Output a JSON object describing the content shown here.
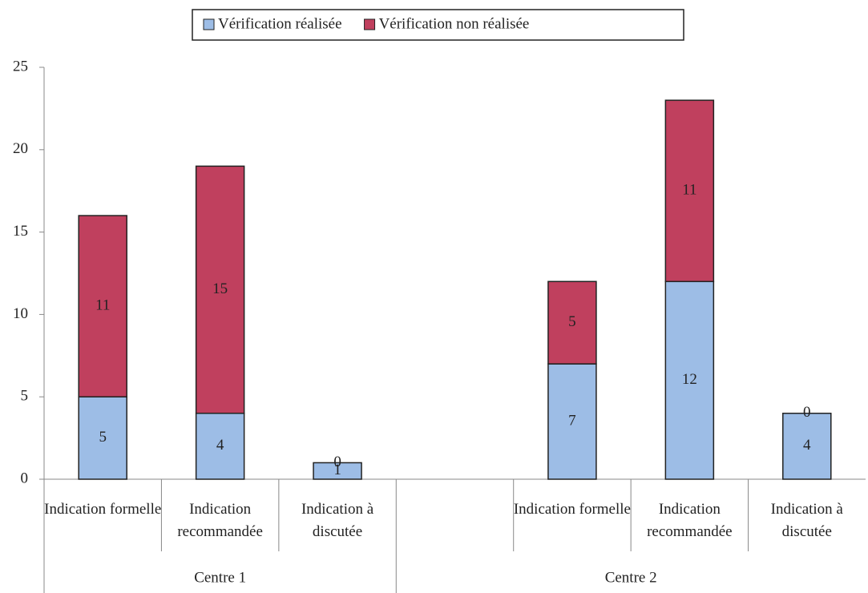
{
  "chart_data": {
    "type": "stacked-bar",
    "categories": [
      "Indication formelle",
      "Indication recommandée",
      "Indication à discutée",
      null,
      "Indication formelle",
      "Indication recommandée",
      "Indication à discutée"
    ],
    "groups": [
      "Centre 1",
      "Centre 2"
    ],
    "series": [
      {
        "name": "Vérification réalisée",
        "color": "#9dbde6",
        "values": [
          5,
          4,
          1,
          null,
          7,
          12,
          4
        ]
      },
      {
        "name": "Vérification non réalisée",
        "color": "#c0405e",
        "values": [
          11,
          15,
          0,
          null,
          5,
          11,
          0
        ]
      }
    ],
    "ylim": [
      0,
      25
    ],
    "yticks": [
      0,
      5,
      10,
      15,
      20,
      25
    ],
    "legend": "top",
    "grid": false
  }
}
